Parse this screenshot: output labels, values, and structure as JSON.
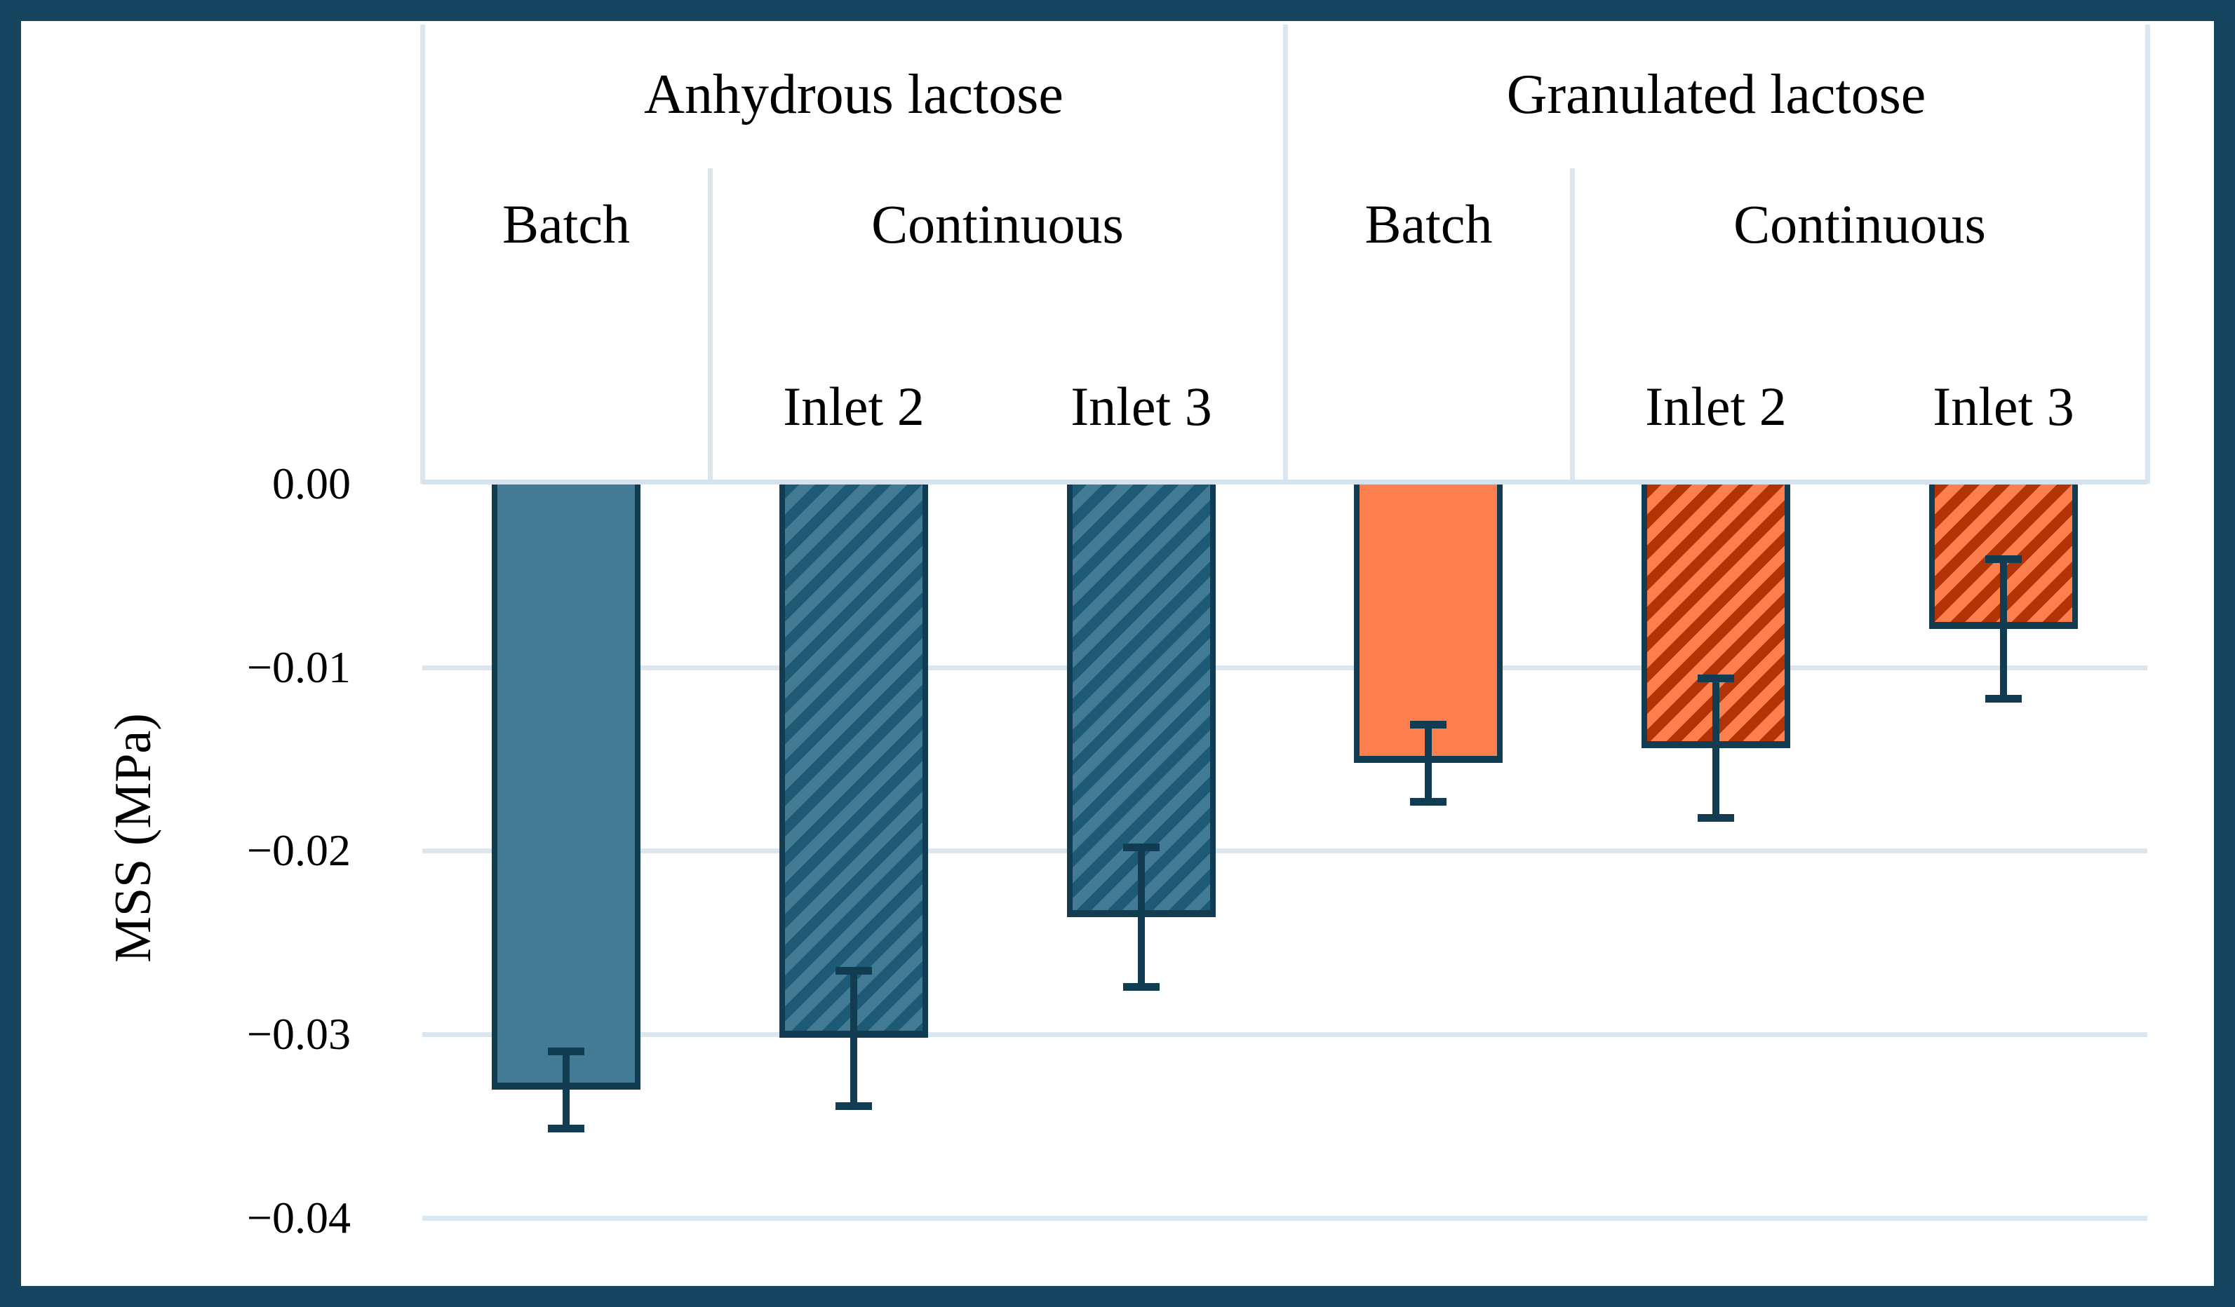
{
  "figure": {
    "border_color": "#15455e",
    "background": "#ffffff",
    "grid_color": "#dbe6ee",
    "error_bar_color": "#123c52"
  },
  "y_axis": {
    "title": "MSS (MPa)",
    "ticks": [
      {
        "label": "0.00",
        "value": 0.0
      },
      {
        "label": "−0.01",
        "value": -0.01
      },
      {
        "label": "−0.02",
        "value": -0.02
      },
      {
        "label": "−0.03",
        "value": -0.03
      },
      {
        "label": "−0.04",
        "value": -0.04
      }
    ]
  },
  "header": {
    "groups": [
      {
        "title": "Anhydrous lactose",
        "batch_label": "Batch",
        "continuous_label": "Continuous",
        "inlet_labels": [
          "Inlet 2",
          "Inlet 3"
        ]
      },
      {
        "title": "Granulated lactose",
        "batch_label": "Batch",
        "continuous_label": "Continuous",
        "inlet_labels": [
          "Inlet 2",
          "Inlet 3"
        ]
      }
    ]
  },
  "chart_data": {
    "type": "bar",
    "title": "",
    "xlabel": "",
    "ylabel": "MSS (MPa)",
    "ylim": [
      -0.04,
      0.0
    ],
    "grid": true,
    "legend_position": "none",
    "categories": [
      "Anhydrous lactose - Batch",
      "Anhydrous lactose - Continuous Inlet 2",
      "Anhydrous lactose - Continuous Inlet 3",
      "Granulated lactose - Batch",
      "Granulated lactose - Continuous Inlet 2",
      "Granulated lactose - Continuous Inlet 3"
    ],
    "values": [
      -0.033,
      -0.0302,
      -0.0236,
      -0.0152,
      -0.0144,
      -0.0079
    ],
    "error": [
      0.0021,
      0.0037,
      0.0038,
      0.0021,
      0.0038,
      0.0038
    ],
    "styles": [
      {
        "fill": "#447b94",
        "hatch": false,
        "hatch_color": null
      },
      {
        "fill": "#447b94",
        "hatch": true,
        "hatch_color": "#1d5a75"
      },
      {
        "fill": "#447b94",
        "hatch": true,
        "hatch_color": "#1d5a75"
      },
      {
        "fill": "#fe7f4e",
        "hatch": false,
        "hatch_color": null
      },
      {
        "fill": "#fe7f4e",
        "hatch": true,
        "hatch_color": "#b23305"
      },
      {
        "fill": "#fe7f4e",
        "hatch": true,
        "hatch_color": "#b23305"
      }
    ]
  }
}
